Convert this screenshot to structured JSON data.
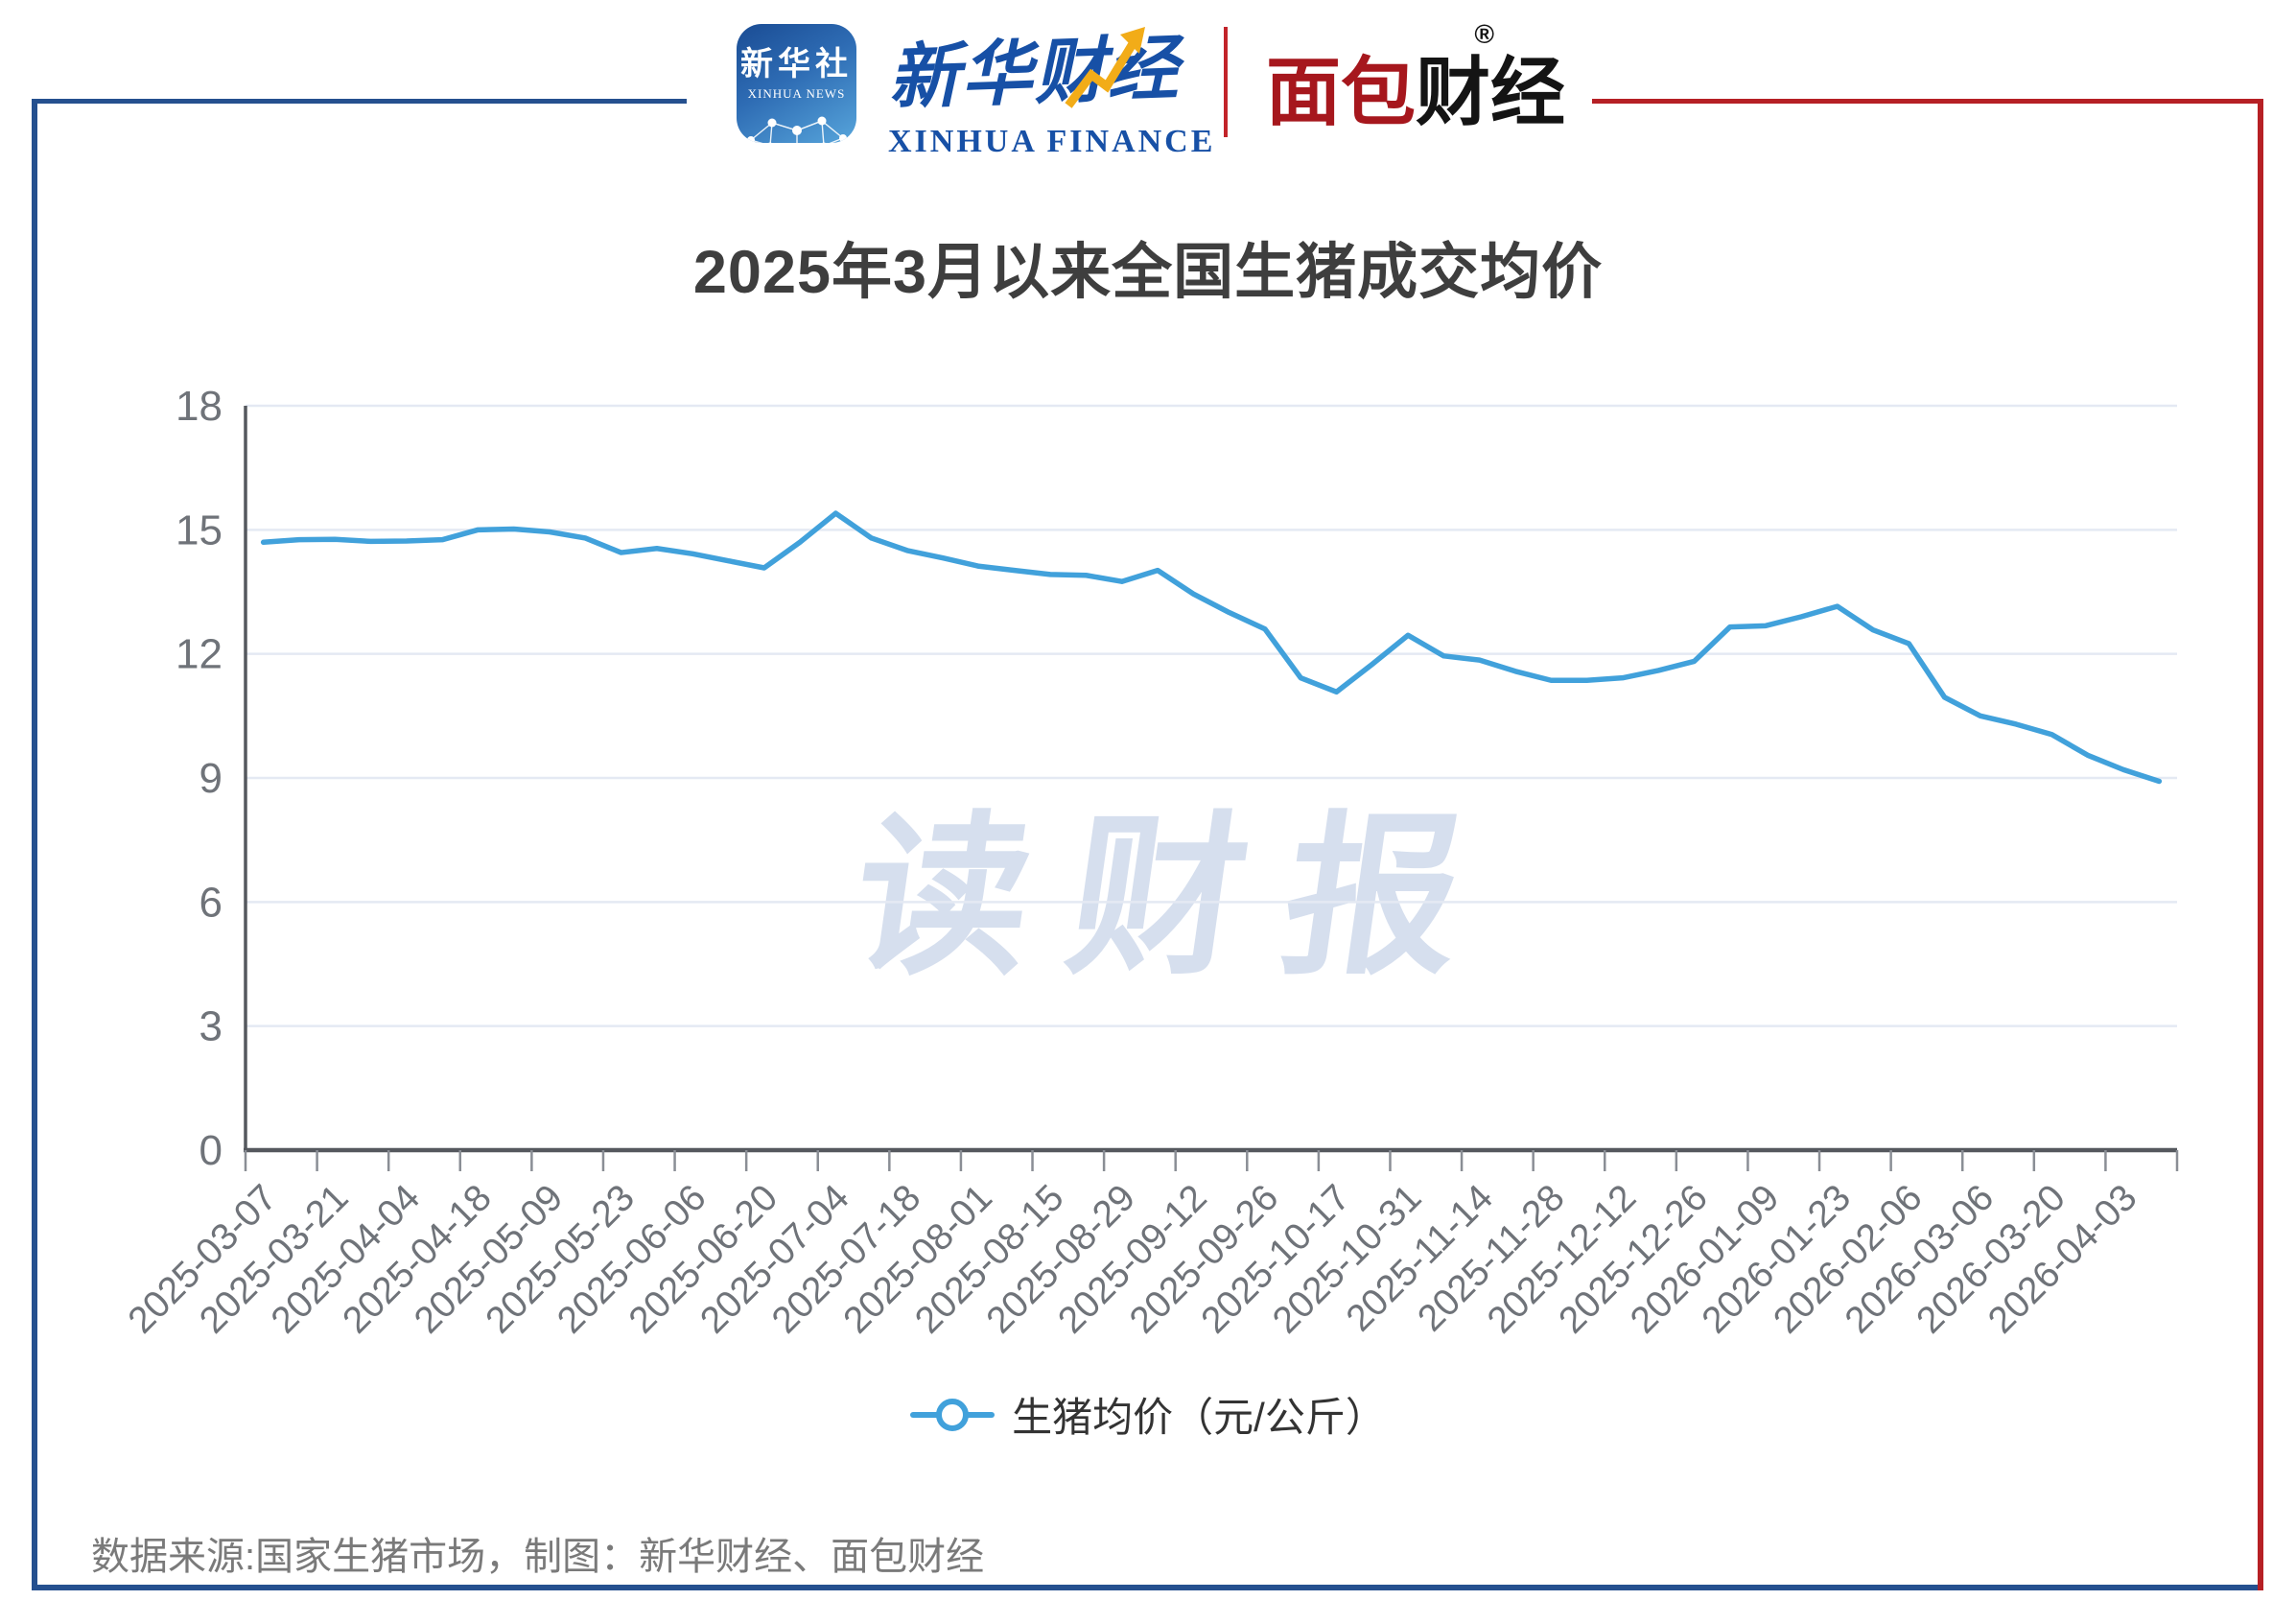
{
  "header": {
    "news_logo": {
      "title": "新华社",
      "subtitle": "XINHUA NEWS"
    },
    "finance_logo": {
      "cn": "新华财经",
      "en": "XINHUA FINANCE"
    },
    "bread_logo": {
      "part1": "面包",
      "part2": "财经",
      "reg": "®"
    }
  },
  "title": "2025年3月以来全国生猪成交均价",
  "watermark": "读财报",
  "legend": {
    "label": "生猪均价（元/公斤）"
  },
  "footer": "数据来源:国家生猪市场，制图：新华财经、面包财经",
  "colors": {
    "accent_blue": "#25508F",
    "accent_red": "#B62025",
    "line": "#41A1DB",
    "grid": "#E4E9F3",
    "axis": "#55585E",
    "tick": "#8A8E95",
    "tick_label": "#6F7379",
    "watermark": "#D6DFEE"
  },
  "chart_data": {
    "type": "line",
    "title": "2025年3月以来全国生猪成交均价",
    "xlabel": "",
    "ylabel": "",
    "unit": "元/公斤",
    "ylim": [
      0,
      18
    ],
    "y_ticks": [
      0,
      3,
      6,
      9,
      12,
      15,
      18
    ],
    "grid": true,
    "legend_position": "bottom",
    "x_tick_labels": [
      "2025-03-07",
      "2025-03-21",
      "2025-04-04",
      "2025-04-18",
      "2025-05-09",
      "2025-05-23",
      "2025-06-06",
      "2025-06-20",
      "2025-07-04",
      "2025-07-18",
      "2025-08-01",
      "2025-08-15",
      "2025-08-29",
      "2025-09-12",
      "2025-09-26",
      "2025-10-17",
      "2025-10-31",
      "2025-11-14",
      "2025-11-28",
      "2025-12-12",
      "2025-12-26",
      "2026-01-09",
      "2026-01-23",
      "2026-02-06",
      "2026-03-06",
      "2026-03-20",
      "2026-04-03"
    ],
    "points_per_label": 2,
    "series": [
      {
        "name": "生猪均价（元/公斤）",
        "color": "#41A1DB",
        "values": [
          14.7,
          14.76,
          14.77,
          14.72,
          14.73,
          14.76,
          15.0,
          15.02,
          14.95,
          14.8,
          14.45,
          14.55,
          14.42,
          14.25,
          14.08,
          14.7,
          15.4,
          14.8,
          14.5,
          14.32,
          14.12,
          14.02,
          13.92,
          13.9,
          13.75,
          14.02,
          13.45,
          13.0,
          12.6,
          11.42,
          11.08,
          11.75,
          12.45,
          11.95,
          11.85,
          11.58,
          11.36,
          11.36,
          11.42,
          11.6,
          11.82,
          12.65,
          12.68,
          12.9,
          13.15,
          12.58,
          12.25,
          10.95,
          10.5,
          10.3,
          10.05,
          9.55,
          9.2,
          8.92
        ]
      }
    ]
  }
}
